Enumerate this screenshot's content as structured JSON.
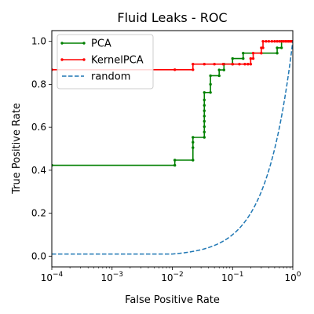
{
  "chart_data": {
    "type": "line",
    "title": "Fluid Leaks - ROC",
    "xlabel": "False Positive Rate",
    "ylabel": "True Positive Rate",
    "xscale": "log",
    "xlim": [
      0.0001,
      1
    ],
    "ylim": [
      -0.05,
      1.05
    ],
    "xticks": [
      {
        "value": 0.0001,
        "base": "10",
        "exp": "−4"
      },
      {
        "value": 0.001,
        "base": "10",
        "exp": "−3"
      },
      {
        "value": 0.01,
        "base": "10",
        "exp": "−2"
      },
      {
        "value": 0.1,
        "base": "10",
        "exp": "−1"
      },
      {
        "value": 1,
        "base": "10",
        "exp": "0"
      }
    ],
    "yticks": [
      {
        "value": 0.0,
        "label": "0.0"
      },
      {
        "value": 0.2,
        "label": "0.2"
      },
      {
        "value": 0.4,
        "label": "0.4"
      },
      {
        "value": 0.6,
        "label": "0.6"
      },
      {
        "value": 0.8,
        "label": "0.8"
      },
      {
        "value": 1.0,
        "label": "1.0"
      }
    ],
    "grid": false,
    "legend_position": "top-left",
    "series": [
      {
        "name": "PCA",
        "color": "#008000",
        "style": "step-markers",
        "points": [
          [
            0.0001,
            0.423
          ],
          [
            0.011,
            0.423
          ],
          [
            0.011,
            0.447
          ],
          [
            0.022,
            0.447
          ],
          [
            0.022,
            0.505
          ],
          [
            0.022,
            0.53
          ],
          [
            0.022,
            0.553
          ],
          [
            0.034,
            0.553
          ],
          [
            0.034,
            0.578
          ],
          [
            0.034,
            0.603
          ],
          [
            0.034,
            0.628
          ],
          [
            0.034,
            0.652
          ],
          [
            0.034,
            0.677
          ],
          [
            0.034,
            0.702
          ],
          [
            0.034,
            0.727
          ],
          [
            0.034,
            0.762
          ],
          [
            0.043,
            0.762
          ],
          [
            0.043,
            0.8
          ],
          [
            0.043,
            0.84
          ],
          [
            0.06,
            0.84
          ],
          [
            0.06,
            0.867
          ],
          [
            0.072,
            0.867
          ],
          [
            0.072,
            0.894
          ],
          [
            0.1,
            0.894
          ],
          [
            0.1,
            0.92
          ],
          [
            0.15,
            0.92
          ],
          [
            0.15,
            0.945
          ],
          [
            0.55,
            0.945
          ],
          [
            0.55,
            0.97
          ],
          [
            0.65,
            0.97
          ],
          [
            0.65,
            1.0
          ],
          [
            1.0,
            1.0
          ]
        ]
      },
      {
        "name": "KernelPCA",
        "color": "#ff0000",
        "style": "step-markers",
        "points": [
          [
            0.0001,
            0.868
          ],
          [
            0.011,
            0.868
          ],
          [
            0.022,
            0.868
          ],
          [
            0.022,
            0.894
          ],
          [
            0.034,
            0.894
          ],
          [
            0.05,
            0.894
          ],
          [
            0.07,
            0.894
          ],
          [
            0.1,
            0.894
          ],
          [
            0.13,
            0.894
          ],
          [
            0.16,
            0.894
          ],
          [
            0.18,
            0.894
          ],
          [
            0.2,
            0.894
          ],
          [
            0.2,
            0.92
          ],
          [
            0.22,
            0.92
          ],
          [
            0.22,
            0.945
          ],
          [
            0.3,
            0.945
          ],
          [
            0.3,
            0.97
          ],
          [
            0.32,
            0.97
          ],
          [
            0.32,
            1.0
          ],
          [
            0.36,
            1.0
          ],
          [
            0.4,
            1.0
          ],
          [
            0.45,
            1.0
          ],
          [
            0.5,
            1.0
          ],
          [
            0.55,
            1.0
          ],
          [
            0.6,
            1.0
          ],
          [
            0.65,
            1.0
          ],
          [
            0.7,
            1.0
          ],
          [
            0.75,
            1.0
          ],
          [
            0.8,
            1.0
          ],
          [
            0.85,
            1.0
          ],
          [
            0.9,
            1.0
          ],
          [
            0.95,
            1.0
          ],
          [
            1.0,
            1.0
          ]
        ]
      },
      {
        "name": "random",
        "color": "#1f77b4",
        "style": "dashed",
        "function": "y=x",
        "floor": 0.01
      }
    ]
  }
}
